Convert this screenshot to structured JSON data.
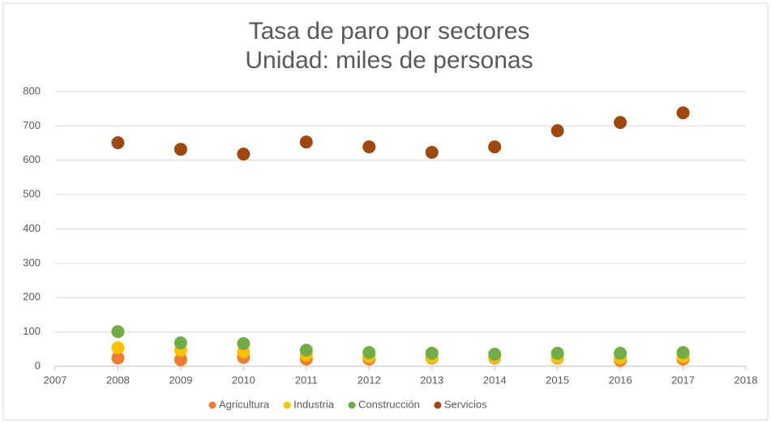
{
  "chart_data": {
    "type": "scatter",
    "title": "Tasa de paro por sectores",
    "subtitle": "Unidad: miles de personas",
    "x": [
      2008,
      2009,
      2010,
      2011,
      2012,
      2013,
      2014,
      2015,
      2016,
      2017
    ],
    "series": [
      {
        "name": "Agricultura",
        "color": "#ed7d31",
        "values": [
          24,
          19,
          26,
          21,
          21,
          24,
          24,
          24,
          17,
          21
        ]
      },
      {
        "name": "Industria",
        "color": "#ffc000",
        "values": [
          54,
          47,
          42,
          33,
          28,
          26,
          26,
          26,
          24,
          28
        ]
      },
      {
        "name": "Construcción",
        "color": "#70ad47",
        "values": [
          101,
          68,
          66,
          47,
          40,
          38,
          35,
          38,
          38,
          40
        ]
      },
      {
        "name": "Servicios",
        "color": "#9e480e",
        "values": [
          651,
          632,
          618,
          653,
          639,
          623,
          639,
          686,
          710,
          738
        ]
      }
    ],
    "xlim": [
      2007,
      2018
    ],
    "xticks": [
      2007,
      2008,
      2009,
      2010,
      2011,
      2012,
      2013,
      2014,
      2015,
      2016,
      2017,
      2018
    ],
    "ylim": [
      0,
      800
    ],
    "yticks": [
      0,
      100,
      200,
      300,
      400,
      500,
      600,
      700,
      800
    ],
    "grid": true,
    "legend": "bottom"
  }
}
